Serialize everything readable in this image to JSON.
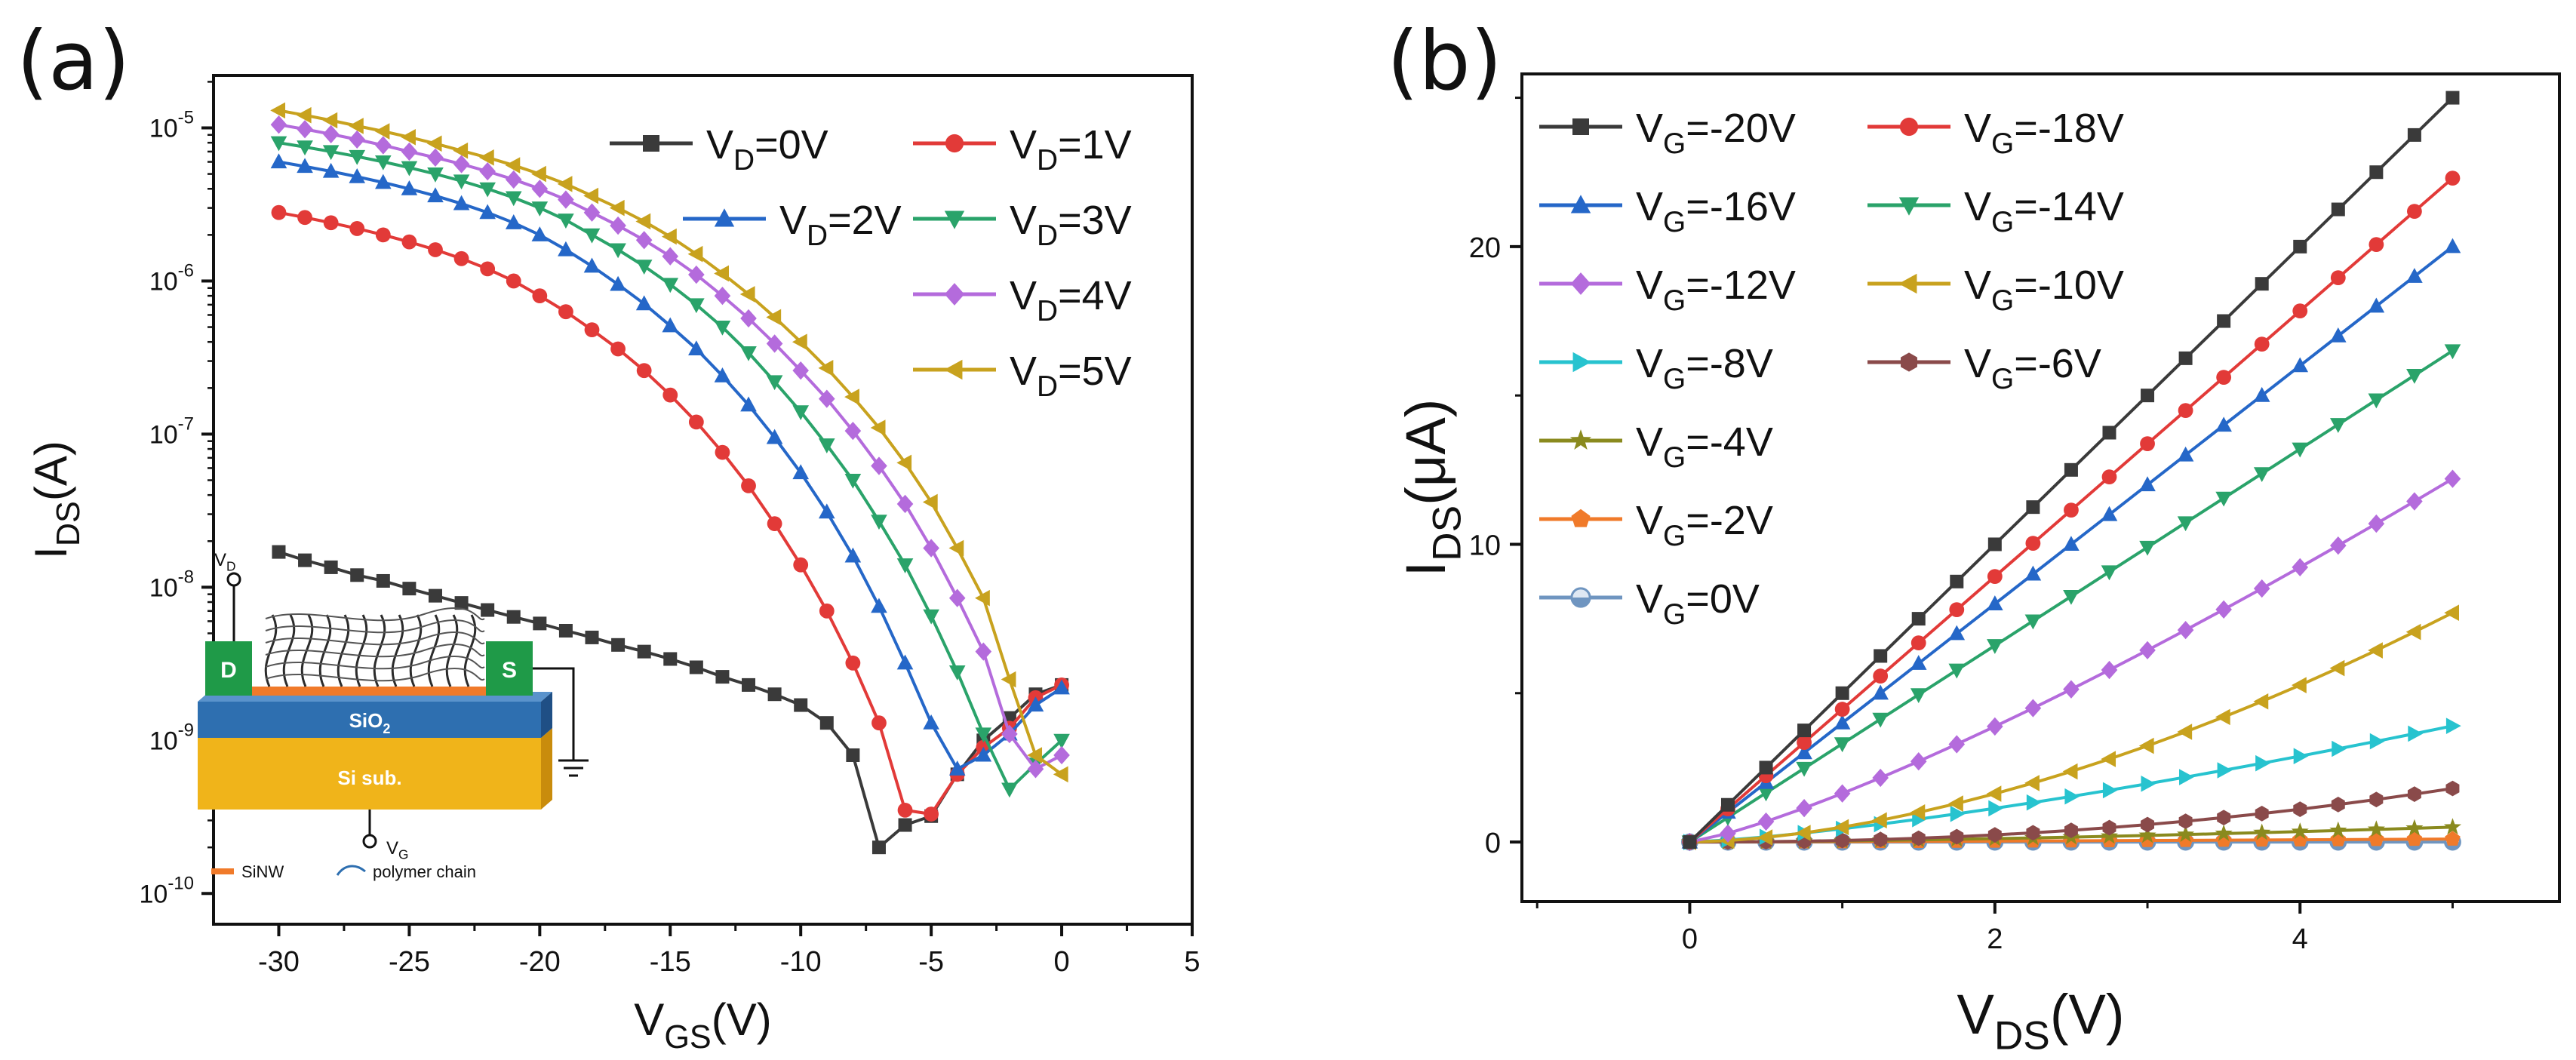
{
  "chart_data": [
    {
      "panel_label": "(a)",
      "type": "line",
      "xlabel": "V",
      "xlabel_sub": "GS",
      "xlabel_unit": "(V)",
      "ylabel": "I",
      "ylabel_sub": "DS",
      "ylabel_unit": "(A)",
      "y_scale": "log",
      "xlim": [
        -32.5,
        5
      ],
      "ylim": [
        6.3e-11,
        2.2e-05
      ],
      "x_ticks": [
        "-30",
        "-25",
        "-20",
        "-15",
        "-10",
        "-5",
        "0",
        "5"
      ],
      "y_ticks": [
        {
          "base": "10",
          "exp": "-10"
        },
        {
          "base": "10",
          "exp": "-9"
        },
        {
          "base": "10",
          "exp": "-8"
        },
        {
          "base": "10",
          "exp": "-7"
        },
        {
          "base": "10",
          "exp": "-6"
        },
        {
          "base": "10",
          "exp": "-5"
        }
      ],
      "legend_position": "top-right",
      "x": [
        -30,
        -29,
        -28,
        -27,
        -26,
        -25,
        -24,
        -23,
        -22,
        -21,
        -20,
        -19,
        -18,
        -17,
        -16,
        -15,
        -14,
        -13,
        -12,
        -11,
        -10,
        -9,
        -8,
        -7,
        -6,
        -5,
        -4,
        -3,
        -2,
        -1,
        0
      ],
      "series": [
        {
          "name": "V",
          "sub": "D",
          "suffix": "=0V",
          "color": "#3a3a3a",
          "marker": "square",
          "values": [
            1.7e-08,
            1.5e-08,
            1.35e-08,
            1.2e-08,
            1.1e-08,
            9.8e-09,
            8.8e-09,
            7.9e-09,
            7.1e-09,
            6.4e-09,
            5.8e-09,
            5.2e-09,
            4.7e-09,
            4.2e-09,
            3.8e-09,
            3.4e-09,
            3e-09,
            2.6e-09,
            2.3e-09,
            2e-09,
            1.7e-09,
            1.3e-09,
            8e-10,
            2e-10,
            2.8e-10,
            3.2e-10,
            6e-10,
            1e-09,
            1.4e-09,
            2e-09,
            2.3e-09
          ]
        },
        {
          "name": "V",
          "sub": "D",
          "suffix": "=1V",
          "color": "#e23a38",
          "marker": "circle",
          "values": [
            2.8e-06,
            2.6e-06,
            2.4e-06,
            2.2e-06,
            2e-06,
            1.8e-06,
            1.6e-06,
            1.4e-06,
            1.2e-06,
            1e-06,
            8e-07,
            6.3e-07,
            4.8e-07,
            3.6e-07,
            2.6e-07,
            1.8e-07,
            1.2e-07,
            7.6e-08,
            4.6e-08,
            2.6e-08,
            1.4e-08,
            7e-09,
            3.2e-09,
            1.3e-09,
            3.5e-10,
            3.3e-10,
            6e-10,
            9e-10,
            1.2e-09,
            1.9e-09,
            2.3e-09
          ]
        },
        {
          "name": "V",
          "sub": "D",
          "suffix": "=2V",
          "color": "#2567c8",
          "marker": "triangle-up",
          "values": [
            6e-06,
            5.6e-06,
            5.2e-06,
            4.8e-06,
            4.4e-06,
            4e-06,
            3.6e-06,
            3.2e-06,
            2.8e-06,
            2.4e-06,
            2e-06,
            1.6e-06,
            1.25e-06,
            9.5e-07,
            7.1e-07,
            5.1e-07,
            3.6e-07,
            2.4e-07,
            1.55e-07,
            9.5e-08,
            5.6e-08,
            3.1e-08,
            1.6e-08,
            7.5e-09,
            3.2e-09,
            1.3e-09,
            6.5e-10,
            8e-10,
            1.1e-09,
            1.7e-09,
            2.2e-09
          ]
        },
        {
          "name": "V",
          "sub": "D",
          "suffix": "=3V",
          "color": "#2aa36a",
          "marker": "triangle-down",
          "values": [
            8e-06,
            7.5e-06,
            7e-06,
            6.5e-06,
            6e-06,
            5.5e-06,
            5e-06,
            4.5e-06,
            4e-06,
            3.5e-06,
            3e-06,
            2.5e-06,
            2e-06,
            1.6e-06,
            1.25e-06,
            9.5e-07,
            7e-07,
            5e-07,
            3.4e-07,
            2.2e-07,
            1.4e-07,
            8.5e-08,
            5e-08,
            2.7e-08,
            1.4e-08,
            6.5e-09,
            2.8e-09,
            1.1e-09,
            4.8e-10,
            7e-10,
            1e-09
          ]
        },
        {
          "name": "V",
          "sub": "D",
          "suffix": "=4V",
          "color": "#b46bdc",
          "marker": "diamond",
          "values": [
            1.05e-05,
            9.8e-06,
            9.1e-06,
            8.4e-06,
            7.7e-06,
            7e-06,
            6.4e-06,
            5.8e-06,
            5.2e-06,
            4.6e-06,
            4e-06,
            3.4e-06,
            2.8e-06,
            2.3e-06,
            1.85e-06,
            1.45e-06,
            1.1e-06,
            8e-07,
            5.7e-07,
            3.9e-07,
            2.6e-07,
            1.7e-07,
            1.05e-07,
            6.2e-08,
            3.5e-08,
            1.8e-08,
            8.5e-09,
            3.8e-09,
            1.1e-09,
            6.5e-10,
            8e-10
          ]
        },
        {
          "name": "V",
          "sub": "D",
          "suffix": "=5V",
          "color": "#c8a21e",
          "marker": "triangle-left",
          "values": [
            1.3e-05,
            1.21e-05,
            1.12e-05,
            1.03e-05,
            9.5e-06,
            8.7e-06,
            7.9e-06,
            7.1e-06,
            6.4e-06,
            5.7e-06,
            5e-06,
            4.3e-06,
            3.6e-06,
            3e-06,
            2.45e-06,
            1.95e-06,
            1.5e-06,
            1.12e-06,
            8.2e-07,
            5.8e-07,
            4e-07,
            2.7e-07,
            1.75e-07,
            1.1e-07,
            6.5e-08,
            3.6e-08,
            1.8e-08,
            8.5e-09,
            2.5e-09,
            8e-10,
            6e-10
          ]
        }
      ],
      "inset": {
        "terminal_d": "D",
        "terminal_s": "S",
        "oxide_label": "SiO",
        "oxide_sub": "2",
        "substrate_label": "Si sub.",
        "vd_label": "V",
        "vd_sub": "D",
        "vg_label": "V",
        "vg_sub": "G",
        "legend_sinw": "SiNW",
        "legend_polymer": "polymer chain",
        "color_contact": "#1f9a48",
        "color_oxide": "#2e6fb0",
        "color_substrate": "#f0b41a",
        "color_sinw": "#f07a2a"
      }
    },
    {
      "panel_label": "(b)",
      "type": "line",
      "xlabel": "V",
      "xlabel_sub": "DS",
      "xlabel_unit": "(V)",
      "ylabel": "I",
      "ylabel_sub": "DS",
      "ylabel_unit": "(μA)",
      "xlim": [
        -1.1,
        5.7
      ],
      "ylim": [
        -2,
        25.8
      ],
      "x_ticks": [
        "0",
        "2",
        "4"
      ],
      "y_ticks": [
        "0",
        "10",
        "20"
      ],
      "legend_position": "top-left",
      "x": [
        0,
        0.25,
        0.5,
        0.75,
        1,
        1.25,
        1.5,
        1.75,
        2,
        2.25,
        2.5,
        2.75,
        3,
        3.25,
        3.5,
        3.75,
        4,
        4.25,
        4.5,
        4.75,
        5
      ],
      "series": [
        {
          "name": "V",
          "sub": "G",
          "suffix": "=-20V",
          "color": "#3a3a3a",
          "marker": "square",
          "kind": "linear",
          "end": 25.0
        },
        {
          "name": "V",
          "sub": "G",
          "suffix": "=-18V",
          "color": "#e23a38",
          "marker": "circle",
          "kind": "linear",
          "end": 22.3
        },
        {
          "name": "V",
          "sub": "G",
          "suffix": "=-16V",
          "color": "#2567c8",
          "marker": "triangle-up",
          "kind": "linear",
          "end": 20.0
        },
        {
          "name": "V",
          "sub": "G",
          "suffix": "=-14V",
          "color": "#2aa36a",
          "marker": "triangle-down",
          "kind": "linear",
          "end": 16.5
        },
        {
          "name": "V",
          "sub": "G",
          "suffix": "=-12V",
          "color": "#b46bdc",
          "marker": "diamond",
          "kind": "curve",
          "end": 12.2,
          "power": 1.25
        },
        {
          "name": "V",
          "sub": "G",
          "suffix": "=-10V",
          "color": "#c8a21e",
          "marker": "triangle-left",
          "kind": "curve",
          "end": 7.7,
          "power": 1.7
        },
        {
          "name": "V",
          "sub": "G",
          "suffix": "=-8V",
          "color": "#27c3cf",
          "marker": "triangle-right",
          "kind": "curve",
          "end": 3.9,
          "power": 1.35
        },
        {
          "name": "V",
          "sub": "G",
          "suffix": "=-6V",
          "color": "#8a4a4a",
          "marker": "hexagon",
          "kind": "curve",
          "end": 1.8,
          "power": 2.2
        },
        {
          "name": "V",
          "sub": "G",
          "suffix": "=-4V",
          "color": "#8a8a1e",
          "marker": "star",
          "kind": "curve",
          "end": 0.5,
          "power": 1.6
        },
        {
          "name": "V",
          "sub": "G",
          "suffix": "=-2V",
          "color": "#f07a2a",
          "marker": "pentagon",
          "kind": "curve",
          "end": 0.1,
          "power": 1.3
        },
        {
          "name": "V",
          "sub": "G",
          "suffix": "=0V",
          "color": "#6f95c0",
          "marker": "circle-half",
          "kind": "curve",
          "end": 0.0,
          "power": 1
        }
      ]
    }
  ]
}
